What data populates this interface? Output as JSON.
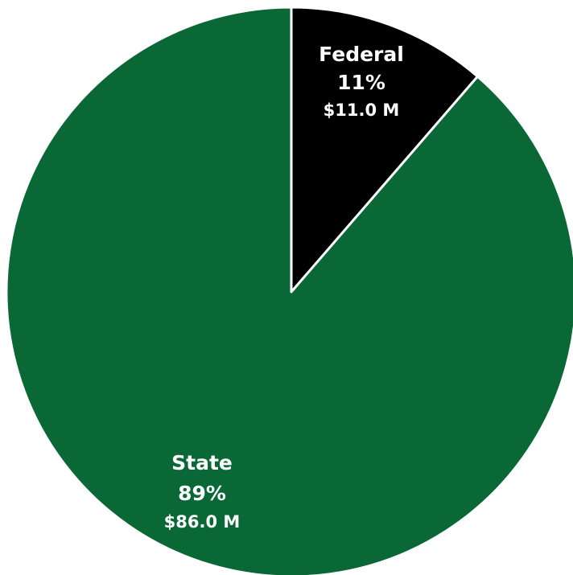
{
  "chart_data": {
    "type": "pie",
    "title": "",
    "slices": [
      {
        "label": "Federal",
        "percent_label": "11%",
        "value_label": "$11.0 M",
        "value": 11.0,
        "percent": 11,
        "color": "#000000"
      },
      {
        "label": "State",
        "percent_label": "89%",
        "value_label": "$86.0 M",
        "value": 86.0,
        "percent": 89,
        "color": "#096835"
      }
    ],
    "start": "12 o'clock",
    "direction": "clockwise",
    "slice_border_color": "#ffffff"
  }
}
